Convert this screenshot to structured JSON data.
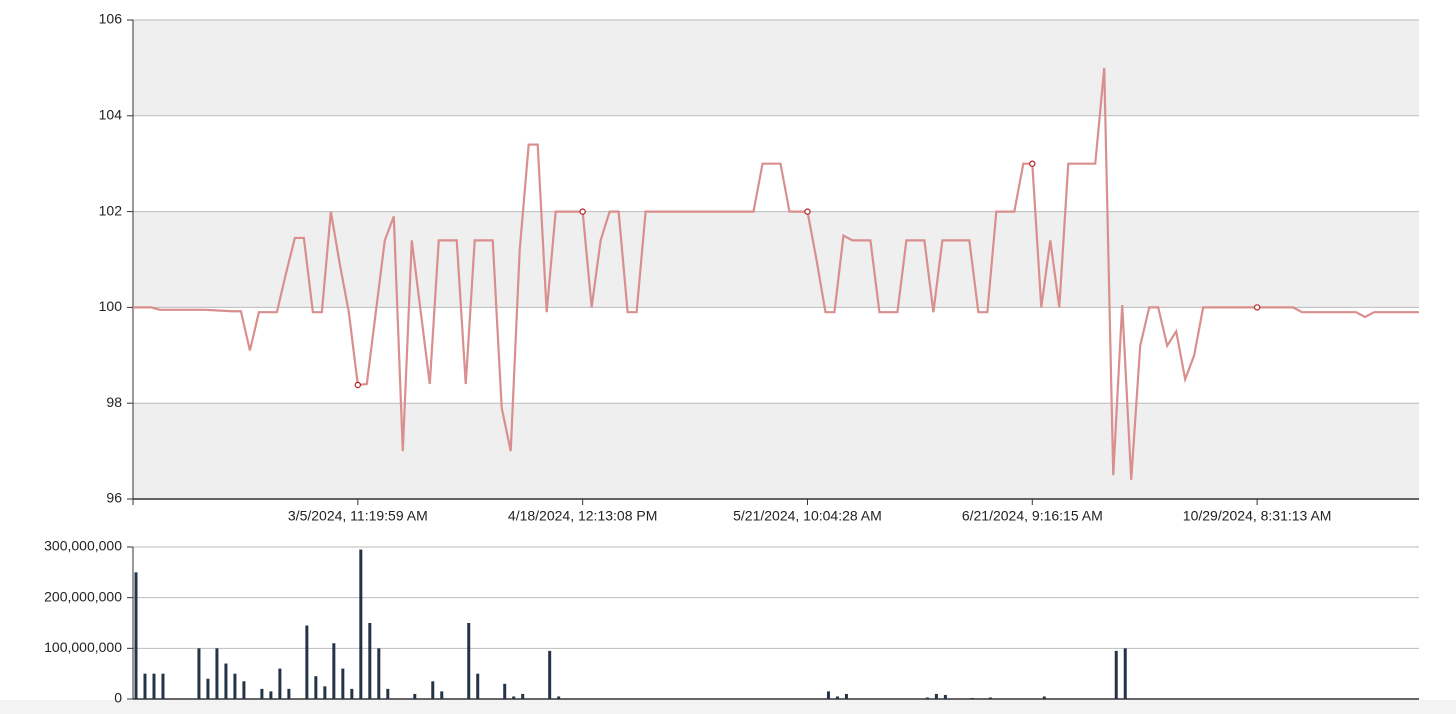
{
  "chart_data": [
    {
      "type": "line",
      "color": "#d88f8d",
      "marker_color": "#b22222",
      "categories": [
        null,
        null,
        null,
        null,
        null,
        null,
        null,
        null,
        null,
        null,
        null,
        null,
        null,
        null,
        null,
        null,
        null,
        null,
        null,
        null,
        null,
        null,
        null,
        null,
        null,
        "3/5/2024, 11:19:59 AM",
        null,
        null,
        null,
        null,
        null,
        null,
        null,
        null,
        null,
        null,
        null,
        null,
        null,
        null,
        null,
        null,
        null,
        null,
        null,
        null,
        null,
        null,
        null,
        null,
        "4/18/2024, 12:13:08 PM",
        null,
        null,
        null,
        null,
        null,
        null,
        null,
        null,
        null,
        null,
        null,
        null,
        null,
        null,
        null,
        null,
        null,
        null,
        null,
        null,
        null,
        null,
        null,
        null,
        "5/21/2024, 10:04:28 AM",
        null,
        null,
        null,
        null,
        null,
        null,
        null,
        null,
        null,
        null,
        null,
        null,
        null,
        null,
        null,
        null,
        null,
        null,
        null,
        null,
        null,
        null,
        null,
        null,
        "6/21/2024, 9:16:15 AM",
        null,
        null,
        null,
        null,
        null,
        null,
        null,
        null,
        null,
        null,
        null,
        null,
        null,
        null,
        null,
        null,
        null,
        null,
        null,
        null,
        null,
        null,
        null,
        null,
        "10/29/2024, 8:31:13 AM",
        null,
        null,
        null,
        null,
        null,
        null,
        null,
        null,
        null,
        null,
        null,
        null,
        null,
        null,
        null,
        null,
        null,
        null
      ],
      "values": [
        100,
        100,
        100,
        99.95,
        99.95,
        99.95,
        99.95,
        99.95,
        99.95,
        99.94,
        99.93,
        99.92,
        99.92,
        99.1,
        99.9,
        99.9,
        99.9,
        100.7,
        101.45,
        101.45,
        99.9,
        99.9,
        102,
        100.9,
        99.9,
        98.38,
        98.4,
        99.9,
        101.4,
        101.9,
        97,
        101.4,
        99.9,
        98.4,
        101.4,
        101.4,
        101.4,
        98.4,
        101.4,
        101.4,
        101.4,
        97.9,
        97,
        101.2,
        103.4,
        103.4,
        99.9,
        102,
        102,
        102,
        102,
        100,
        101.4,
        102,
        102,
        99.9,
        99.9,
        102,
        102,
        102,
        102,
        102,
        102,
        102,
        102,
        102,
        102,
        102,
        102,
        102,
        103,
        103,
        103,
        102,
        102,
        102,
        101,
        99.9,
        99.9,
        101.5,
        101.4,
        101.4,
        101.4,
        99.9,
        99.9,
        99.9,
        101.4,
        101.4,
        101.4,
        99.9,
        101.4,
        101.4,
        101.4,
        101.4,
        99.9,
        99.9,
        102,
        102,
        102,
        103,
        103,
        100,
        101.4,
        100,
        103,
        103,
        103,
        103,
        105,
        96.5,
        100.05,
        96.4,
        99.2,
        100,
        100,
        99.2,
        99.5,
        98.5,
        99,
        100,
        100,
        100,
        100,
        100,
        100,
        100,
        100,
        100,
        100,
        100,
        99.9,
        99.9,
        99.9,
        99.9,
        99.9,
        99.9,
        99.9,
        99.8,
        99.9,
        99.9,
        99.9,
        99.9,
        99.9,
        99.9
      ],
      "ylim": [
        96,
        106
      ],
      "yticks": [
        96,
        98,
        100,
        102,
        104,
        106
      ],
      "grid": true,
      "banded": true
    },
    {
      "type": "bar",
      "color": "#243447",
      "values": [
        250000000,
        50000000,
        50000000,
        50000000,
        0,
        0,
        0,
        100000000,
        40000000,
        100000000,
        70000000,
        50000000,
        35000000,
        0,
        20000000,
        15000000,
        60000000,
        20000000,
        0,
        145000000,
        45000000,
        25000000,
        110000000,
        60000000,
        20000000,
        295000000,
        150000000,
        100000000,
        20000000,
        0,
        0,
        10000000,
        0,
        35000000,
        15000000,
        0,
        0,
        150000000,
        50000000,
        0,
        0,
        30000000,
        5000000,
        10000000,
        0,
        0,
        95000000,
        5000000,
        0,
        0,
        0,
        0,
        0,
        0,
        0,
        0,
        0,
        0,
        0,
        0,
        0,
        0,
        0,
        0,
        0,
        0,
        0,
        0,
        0,
        0,
        0,
        0,
        0,
        0,
        0,
        0,
        0,
        15000000,
        5000000,
        10000000,
        0,
        0,
        0,
        0,
        0,
        0,
        0,
        0,
        3000000,
        10000000,
        8000000,
        0,
        0,
        2000000,
        0,
        3000000,
        0,
        0,
        0,
        0,
        0,
        5000000,
        0,
        0,
        0,
        0,
        0,
        0,
        0,
        95000000,
        100000000,
        0,
        0,
        0,
        0,
        0,
        0,
        0,
        0,
        0,
        0,
        0,
        0,
        0,
        0,
        0,
        0,
        0,
        0,
        0,
        0,
        0,
        0,
        0,
        0,
        0,
        0,
        0,
        0,
        0,
        0,
        0,
        0,
        0
      ],
      "ylim": [
        0,
        300000000
      ],
      "yticks": [
        0,
        {
          "value": 100000000,
          "label": "100,000,000"
        },
        {
          "value": 200000000,
          "label": "200,000,000"
        },
        {
          "value": 300000000,
          "label": "300,000,000"
        }
      ],
      "grid": true
    }
  ]
}
